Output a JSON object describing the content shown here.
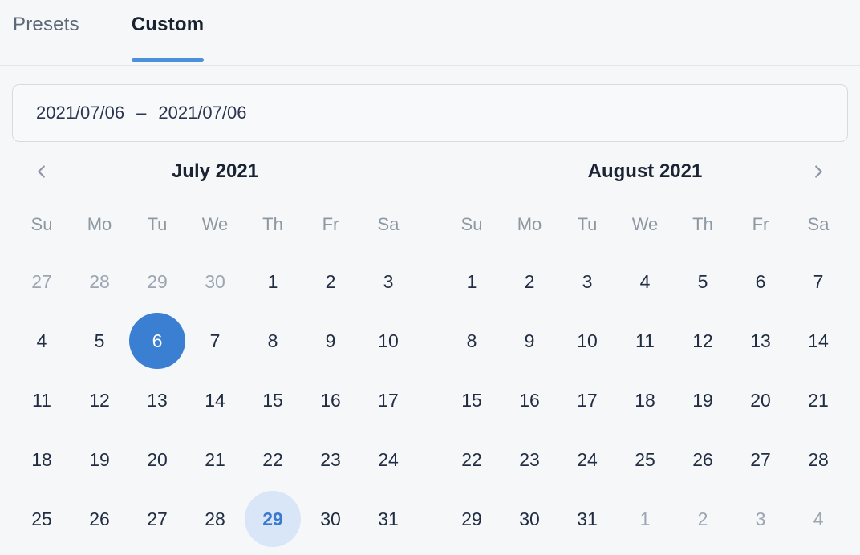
{
  "tabs": {
    "items": [
      {
        "label": "Presets",
        "active": false
      },
      {
        "label": "Custom",
        "active": true
      }
    ]
  },
  "date_input": {
    "start": "2021/07/06",
    "separator": "–",
    "end": "2021/07/06"
  },
  "colors": {
    "page_bg": "#f6f7f9",
    "divider": "#e4e6e9",
    "tab_inactive": "#5d6878",
    "tab_active": "#19222f",
    "accent_underline": "#4a90da",
    "accent": "#3b7fd3",
    "input_bg": "#f8f9fb",
    "input_border": "#d8dade",
    "input_text": "#2a3650",
    "title": "#1a2433",
    "chevron": "#8f97a4",
    "weekday": "#8d98a1",
    "day": "#212d42",
    "day_muted": "#9ca5b2",
    "today_bg": "#d9e6f7",
    "today_text": "#3a7ace"
  },
  "icons": {
    "prev": "chevron-left-icon",
    "next": "chevron-right-icon"
  },
  "calendars": [
    {
      "title": "July 2021",
      "weekdays": [
        "Su",
        "Mo",
        "Tu",
        "We",
        "Th",
        "Fr",
        "Sa"
      ],
      "weeks": [
        [
          {
            "label": "27",
            "muted": true
          },
          {
            "label": "28",
            "muted": true
          },
          {
            "label": "29",
            "muted": true
          },
          {
            "label": "30",
            "muted": true
          },
          {
            "label": "1"
          },
          {
            "label": "2"
          },
          {
            "label": "3"
          }
        ],
        [
          {
            "label": "4"
          },
          {
            "label": "5"
          },
          {
            "label": "6",
            "selected": true
          },
          {
            "label": "7"
          },
          {
            "label": "8"
          },
          {
            "label": "9"
          },
          {
            "label": "10"
          }
        ],
        [
          {
            "label": "11"
          },
          {
            "label": "12"
          },
          {
            "label": "13"
          },
          {
            "label": "14"
          },
          {
            "label": "15"
          },
          {
            "label": "16"
          },
          {
            "label": "17"
          }
        ],
        [
          {
            "label": "18"
          },
          {
            "label": "19"
          },
          {
            "label": "20"
          },
          {
            "label": "21"
          },
          {
            "label": "22"
          },
          {
            "label": "23"
          },
          {
            "label": "24"
          }
        ],
        [
          {
            "label": "25"
          },
          {
            "label": "26"
          },
          {
            "label": "27"
          },
          {
            "label": "28"
          },
          {
            "label": "29",
            "today": true
          },
          {
            "label": "30"
          },
          {
            "label": "31"
          }
        ]
      ]
    },
    {
      "title": "August 2021",
      "weekdays": [
        "Su",
        "Mo",
        "Tu",
        "We",
        "Th",
        "Fr",
        "Sa"
      ],
      "weeks": [
        [
          {
            "label": "1"
          },
          {
            "label": "2"
          },
          {
            "label": "3"
          },
          {
            "label": "4"
          },
          {
            "label": "5"
          },
          {
            "label": "6"
          },
          {
            "label": "7"
          }
        ],
        [
          {
            "label": "8"
          },
          {
            "label": "9"
          },
          {
            "label": "10"
          },
          {
            "label": "11"
          },
          {
            "label": "12"
          },
          {
            "label": "13"
          },
          {
            "label": "14"
          }
        ],
        [
          {
            "label": "15"
          },
          {
            "label": "16"
          },
          {
            "label": "17"
          },
          {
            "label": "18"
          },
          {
            "label": "19"
          },
          {
            "label": "20"
          },
          {
            "label": "21"
          }
        ],
        [
          {
            "label": "22"
          },
          {
            "label": "23"
          },
          {
            "label": "24"
          },
          {
            "label": "25"
          },
          {
            "label": "26"
          },
          {
            "label": "27"
          },
          {
            "label": "28"
          }
        ],
        [
          {
            "label": "29"
          },
          {
            "label": "30"
          },
          {
            "label": "31"
          },
          {
            "label": "1",
            "muted": true
          },
          {
            "label": "2",
            "muted": true
          },
          {
            "label": "3",
            "muted": true
          },
          {
            "label": "4",
            "muted": true
          }
        ]
      ]
    }
  ]
}
